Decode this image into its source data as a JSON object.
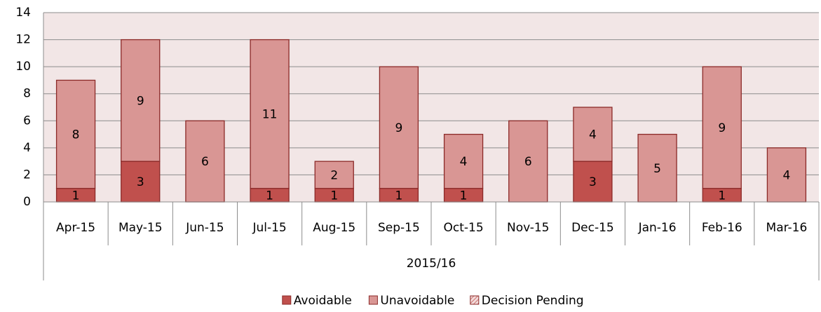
{
  "chart_data": {
    "type": "stacked_bar",
    "categories": [
      "Apr-15",
      "May-15",
      "Jun-15",
      "Jul-15",
      "Aug-15",
      "Sep-15",
      "Oct-15",
      "Nov-15",
      "Dec-15",
      "Jan-16",
      "Feb-16",
      "Mar-16"
    ],
    "x_group_label": "2015/16",
    "series": [
      {
        "name": "Avoidable",
        "color": "#c0504d",
        "values": [
          1,
          3,
          0,
          1,
          1,
          1,
          1,
          0,
          3,
          0,
          1,
          0
        ]
      },
      {
        "name": "Unavoidable",
        "color": "#d99694",
        "values": [
          8,
          9,
          6,
          11,
          2,
          9,
          4,
          6,
          4,
          5,
          9,
          4
        ]
      },
      {
        "name": "Decision Pending",
        "color": "#d99694",
        "hatch": true,
        "values": [
          0,
          0,
          0,
          0,
          0,
          0,
          0,
          0,
          0,
          0,
          0,
          0
        ]
      }
    ],
    "ylim": [
      0,
      14
    ],
    "yticks": [
      0,
      2,
      4,
      6,
      8,
      10,
      12,
      14
    ],
    "grid": true,
    "legend": "bottom"
  }
}
